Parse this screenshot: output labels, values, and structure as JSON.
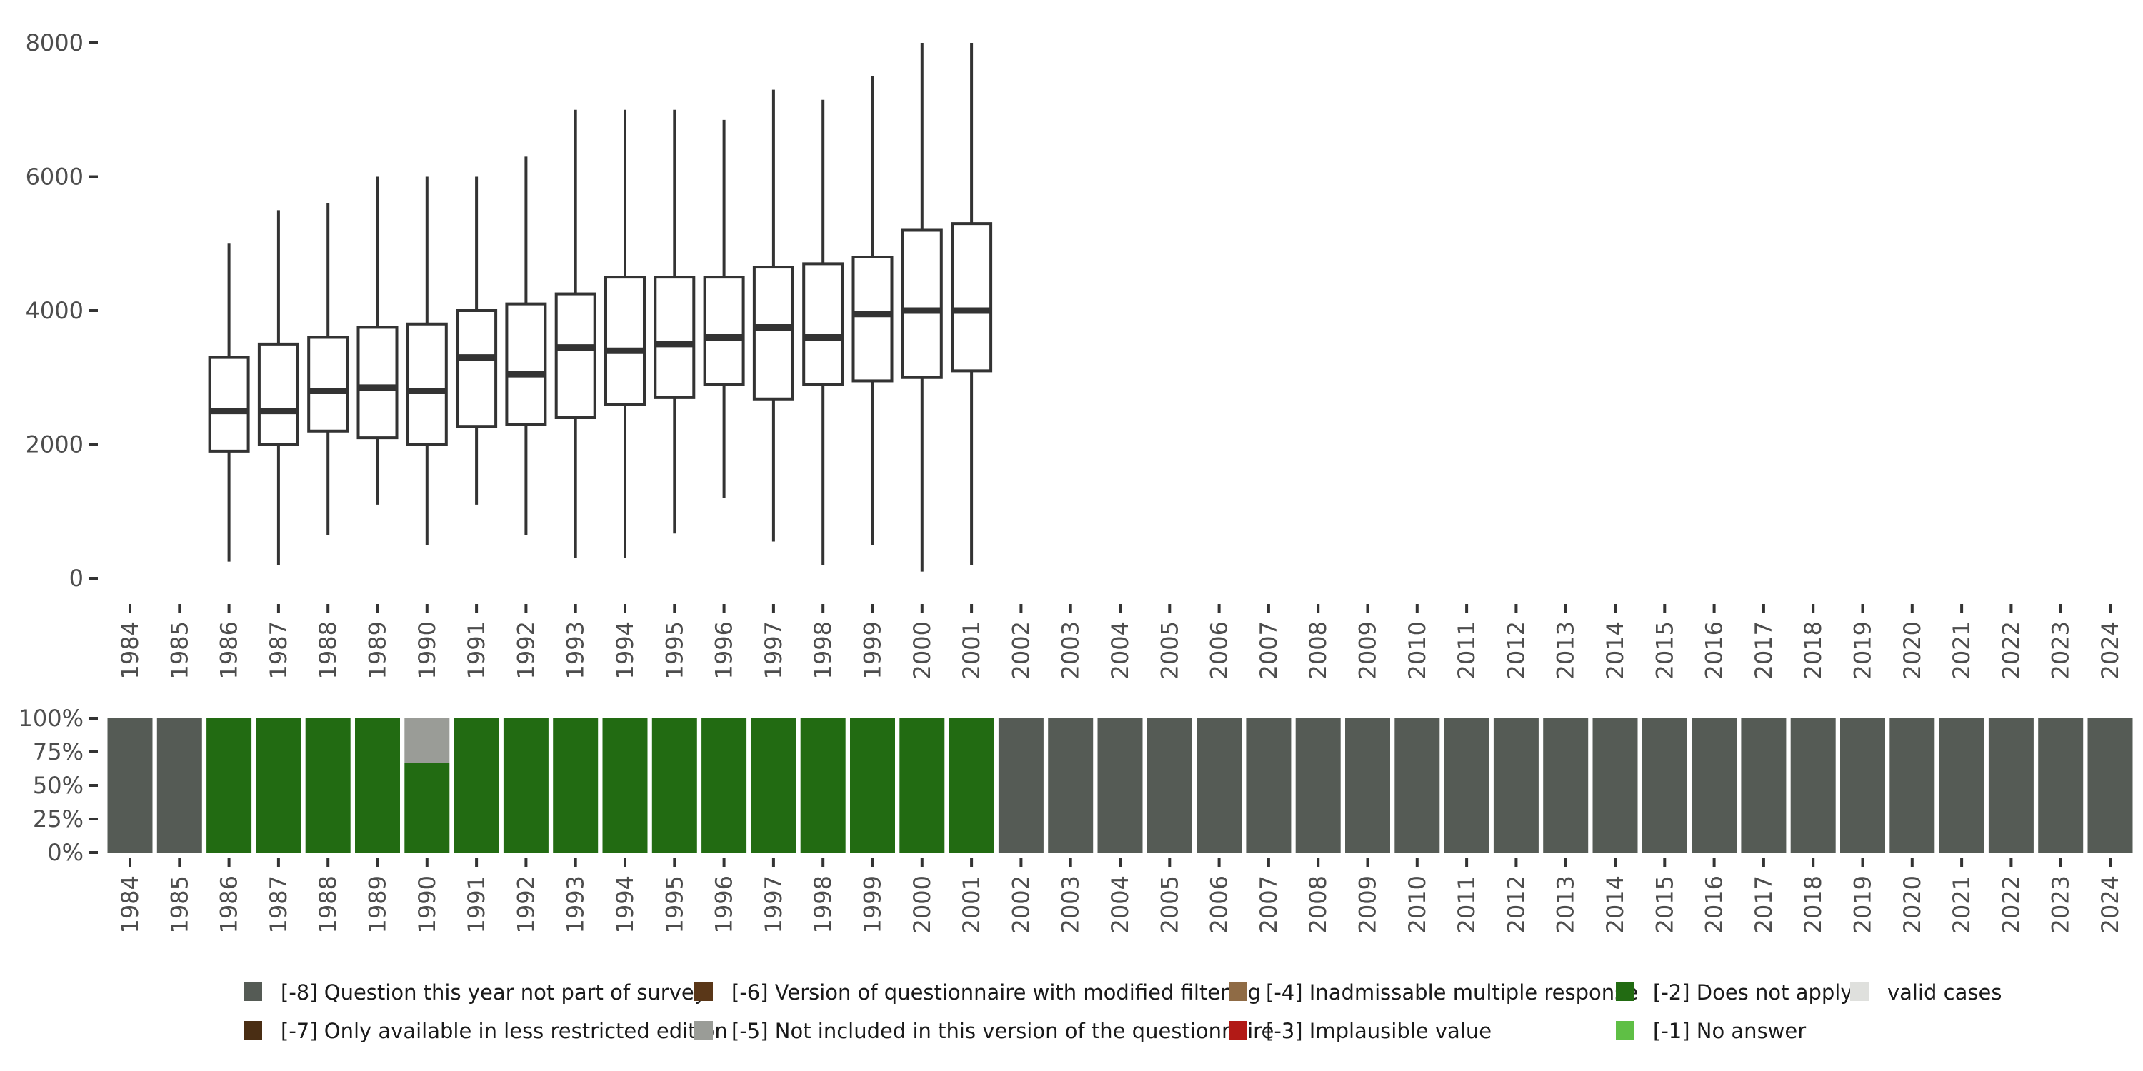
{
  "chart_data": [
    {
      "type": "boxplot",
      "title": "",
      "xlabel": "",
      "ylabel": "",
      "ylim": [
        0,
        8000
      ],
      "yticks": [
        0,
        2000,
        4000,
        6000,
        8000
      ],
      "ytick_labels": [
        "0",
        "2000",
        "4000",
        "6000",
        "8000"
      ],
      "years": [
        "1984",
        "1985",
        "1986",
        "1987",
        "1988",
        "1989",
        "1990",
        "1991",
        "1992",
        "1993",
        "1994",
        "1995",
        "1996",
        "1997",
        "1998",
        "1999",
        "2000",
        "2001",
        "2002",
        "2003",
        "2004",
        "2005",
        "2006",
        "2007",
        "2008",
        "2009",
        "2010",
        "2011",
        "2012",
        "2013",
        "2014",
        "2015",
        "2016",
        "2017",
        "2018",
        "2019",
        "2020",
        "2021",
        "2022",
        "2023",
        "2024"
      ],
      "boxes": [
        {
          "year": "1986",
          "min": 250,
          "q1": 1900,
          "median": 2500,
          "q3": 3300,
          "max": 5000
        },
        {
          "year": "1987",
          "min": 200,
          "q1": 2000,
          "median": 2500,
          "q3": 3500,
          "max": 5500
        },
        {
          "year": "1988",
          "min": 650,
          "q1": 2200,
          "median": 2800,
          "q3": 3600,
          "max": 5600
        },
        {
          "year": "1989",
          "min": 1100,
          "q1": 2100,
          "median": 2850,
          "q3": 3750,
          "max": 6000
        },
        {
          "year": "1990",
          "min": 500,
          "q1": 2000,
          "median": 2800,
          "q3": 3800,
          "max": 6000
        },
        {
          "year": "1991",
          "min": 1100,
          "q1": 2270,
          "median": 3300,
          "q3": 4000,
          "max": 6000
        },
        {
          "year": "1992",
          "min": 650,
          "q1": 2300,
          "median": 3050,
          "q3": 4100,
          "max": 6300
        },
        {
          "year": "1993",
          "min": 300,
          "q1": 2400,
          "median": 3450,
          "q3": 4250,
          "max": 7000
        },
        {
          "year": "1994",
          "min": 300,
          "q1": 2600,
          "median": 3400,
          "q3": 4500,
          "max": 7000
        },
        {
          "year": "1995",
          "min": 670,
          "q1": 2700,
          "median": 3500,
          "q3": 4500,
          "max": 7000
        },
        {
          "year": "1996",
          "min": 1200,
          "q1": 2900,
          "median": 3600,
          "q3": 4500,
          "max": 6850
        },
        {
          "year": "1997",
          "min": 550,
          "q1": 2680,
          "median": 3750,
          "q3": 4650,
          "max": 7300
        },
        {
          "year": "1998",
          "min": 200,
          "q1": 2900,
          "median": 3600,
          "q3": 4700,
          "max": 7150
        },
        {
          "year": "1999",
          "min": 500,
          "q1": 2950,
          "median": 3950,
          "q3": 4800,
          "max": 7500
        },
        {
          "year": "2000",
          "min": 100,
          "q1": 3000,
          "median": 4000,
          "q3": 5200,
          "max": 8000
        },
        {
          "year": "2001",
          "min": 200,
          "q1": 3100,
          "median": 4000,
          "q3": 5300,
          "max": 8000
        }
      ]
    },
    {
      "type": "stacked-bar",
      "ylim": [
        0,
        1
      ],
      "ytick_labels": [
        "0%",
        "25%",
        "50%",
        "75%",
        "100%"
      ],
      "categories": [
        "1984",
        "1985",
        "1986",
        "1987",
        "1988",
        "1989",
        "1990",
        "1991",
        "1992",
        "1993",
        "1994",
        "1995",
        "1996",
        "1997",
        "1998",
        "1999",
        "2000",
        "2001",
        "2002",
        "2003",
        "2004",
        "2005",
        "2006",
        "2007",
        "2008",
        "2009",
        "2010",
        "2011",
        "2012",
        "2013",
        "2014",
        "2015",
        "2016",
        "2017",
        "2018",
        "2019",
        "2020",
        "2021",
        "2022",
        "2023",
        "2024"
      ],
      "series": [
        {
          "name": "[-8] Question this year not part of survey",
          "color": "#555b55",
          "values": [
            1,
            1,
            0,
            0,
            0,
            0,
            0,
            0,
            0,
            0,
            0,
            0,
            0,
            0,
            0,
            0,
            0,
            0,
            1,
            1,
            1,
            1,
            1,
            1,
            1,
            1,
            1,
            1,
            1,
            1,
            1,
            1,
            1,
            1,
            1,
            1,
            1,
            1,
            1,
            1,
            1
          ]
        },
        {
          "name": "[-2] Does not apply",
          "color": "#226b12",
          "values": [
            0,
            0,
            1,
            1,
            1,
            1,
            0.67,
            1,
            1,
            1,
            1,
            1,
            1,
            1,
            1,
            1,
            1,
            1,
            0,
            0,
            0,
            0,
            0,
            0,
            0,
            0,
            0,
            0,
            0,
            0,
            0,
            0,
            0,
            0,
            0,
            0,
            0,
            0,
            0,
            0,
            0
          ]
        },
        {
          "name": "[-5] Not included in this version of the questionnaire",
          "color": "#9a9c97",
          "values": [
            0,
            0,
            0,
            0,
            0,
            0,
            0.33,
            0,
            0,
            0,
            0,
            0,
            0,
            0,
            0,
            0,
            0,
            0,
            0,
            0,
            0,
            0,
            0,
            0,
            0,
            0,
            0,
            0,
            0,
            0,
            0,
            0,
            0,
            0,
            0,
            0,
            0,
            0,
            0,
            0,
            0
          ]
        }
      ]
    }
  ],
  "legend": [
    {
      "label": "[-8] Question this year not part of survey",
      "color": "#555b55"
    },
    {
      "label": "[-7] Only available in less restricted edition",
      "color": "#4a2e14"
    },
    {
      "label": "[-6] Version of questionnaire with modified filtering",
      "color": "#5a3718"
    },
    {
      "label": "[-5] Not included in this version of the questionnaire",
      "color": "#9a9c97"
    },
    {
      "label": "[-4] Inadmissable multiple response",
      "color": "#8f6b45"
    },
    {
      "label": "[-3] Implausible value",
      "color": "#b21a16"
    },
    {
      "label": "[-2] Does not apply",
      "color": "#226b12"
    },
    {
      "label": "[-1] No answer",
      "color": "#5fbf45"
    },
    {
      "label": "valid cases",
      "color": "#dfe0dd"
    }
  ]
}
